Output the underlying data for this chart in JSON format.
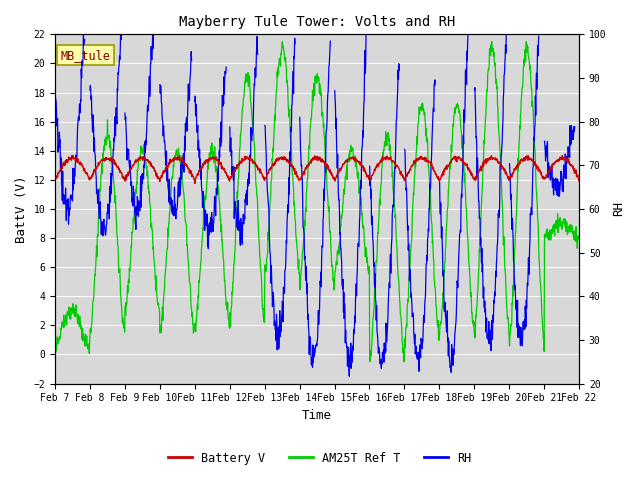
{
  "title": "Mayberry Tule Tower: Volts and RH",
  "xlabel": "Time",
  "ylabel_left": "BattV (V)",
  "ylabel_right": "RH",
  "annotation_text": "MB_tule",
  "left_ylim": [
    -2,
    22
  ],
  "right_ylim": [
    20,
    100
  ],
  "left_yticks": [
    -2,
    0,
    2,
    4,
    6,
    8,
    10,
    12,
    14,
    16,
    18,
    20,
    22
  ],
  "right_yticks": [
    20,
    30,
    40,
    50,
    60,
    70,
    80,
    90,
    100
  ],
  "xtick_labels": [
    "Feb 7",
    "Feb 8",
    "Feb 9",
    "Feb 10",
    "Feb 11",
    "Feb 12",
    "Feb 13",
    "Feb 14",
    "Feb 15",
    "Feb 16",
    "Feb 17",
    "Feb 18",
    "Feb 19",
    "Feb 20",
    "Feb 21",
    "Feb 22"
  ],
  "battery_color": "#cc0000",
  "green_color": "#00cc00",
  "blue_color": "#0000ee",
  "plot_bg_color": "#d8d8d8",
  "grid_color": "#c0c0c0",
  "legend_labels": [
    "Battery V",
    "AM25T Ref T",
    "RH"
  ],
  "font_family": "monospace",
  "annotation_facecolor": "#ffffaa",
  "annotation_edgecolor": "#999900"
}
